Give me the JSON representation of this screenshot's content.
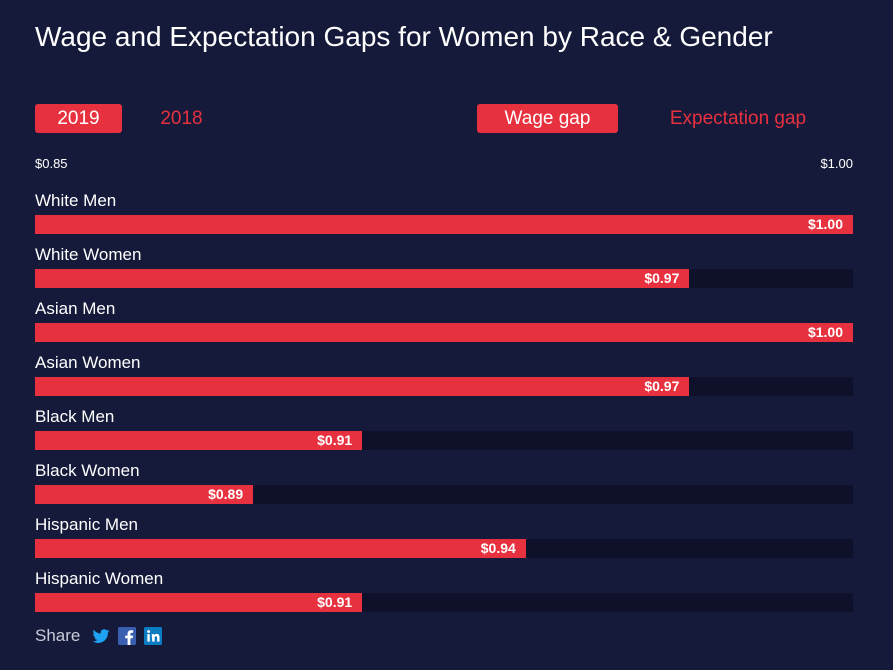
{
  "title": "Wage and Expectation Gaps for Women by Race & Gender",
  "year_tabs": [
    {
      "label": "2019",
      "active": true
    },
    {
      "label": "2018",
      "active": false
    }
  ],
  "metric_tabs": [
    {
      "label": "Wage gap",
      "active": true
    },
    {
      "label": "Expectation gap",
      "active": false
    }
  ],
  "axis": {
    "min_label": "$0.85",
    "max_label": "$1.00"
  },
  "colors": {
    "accent": "#e8313f",
    "background": "#161a3a",
    "track": "#0e1129"
  },
  "chart_data": {
    "type": "bar",
    "orientation": "horizontal",
    "xlim": [
      0.85,
      1.0
    ],
    "categories": [
      "White Men",
      "White Women",
      "Asian Men",
      "Asian Women",
      "Black Men",
      "Black Women",
      "Hispanic Men",
      "Hispanic Women"
    ],
    "values": [
      1.0,
      0.97,
      1.0,
      0.97,
      0.91,
      0.89,
      0.94,
      0.91
    ],
    "value_labels": [
      "$1.00",
      "$0.97",
      "$1.00",
      "$0.97",
      "$0.91",
      "$0.89",
      "$0.94",
      "$0.91"
    ]
  },
  "share": {
    "label": "Share",
    "icons": [
      "twitter-icon",
      "facebook-icon",
      "linkedin-icon"
    ]
  }
}
